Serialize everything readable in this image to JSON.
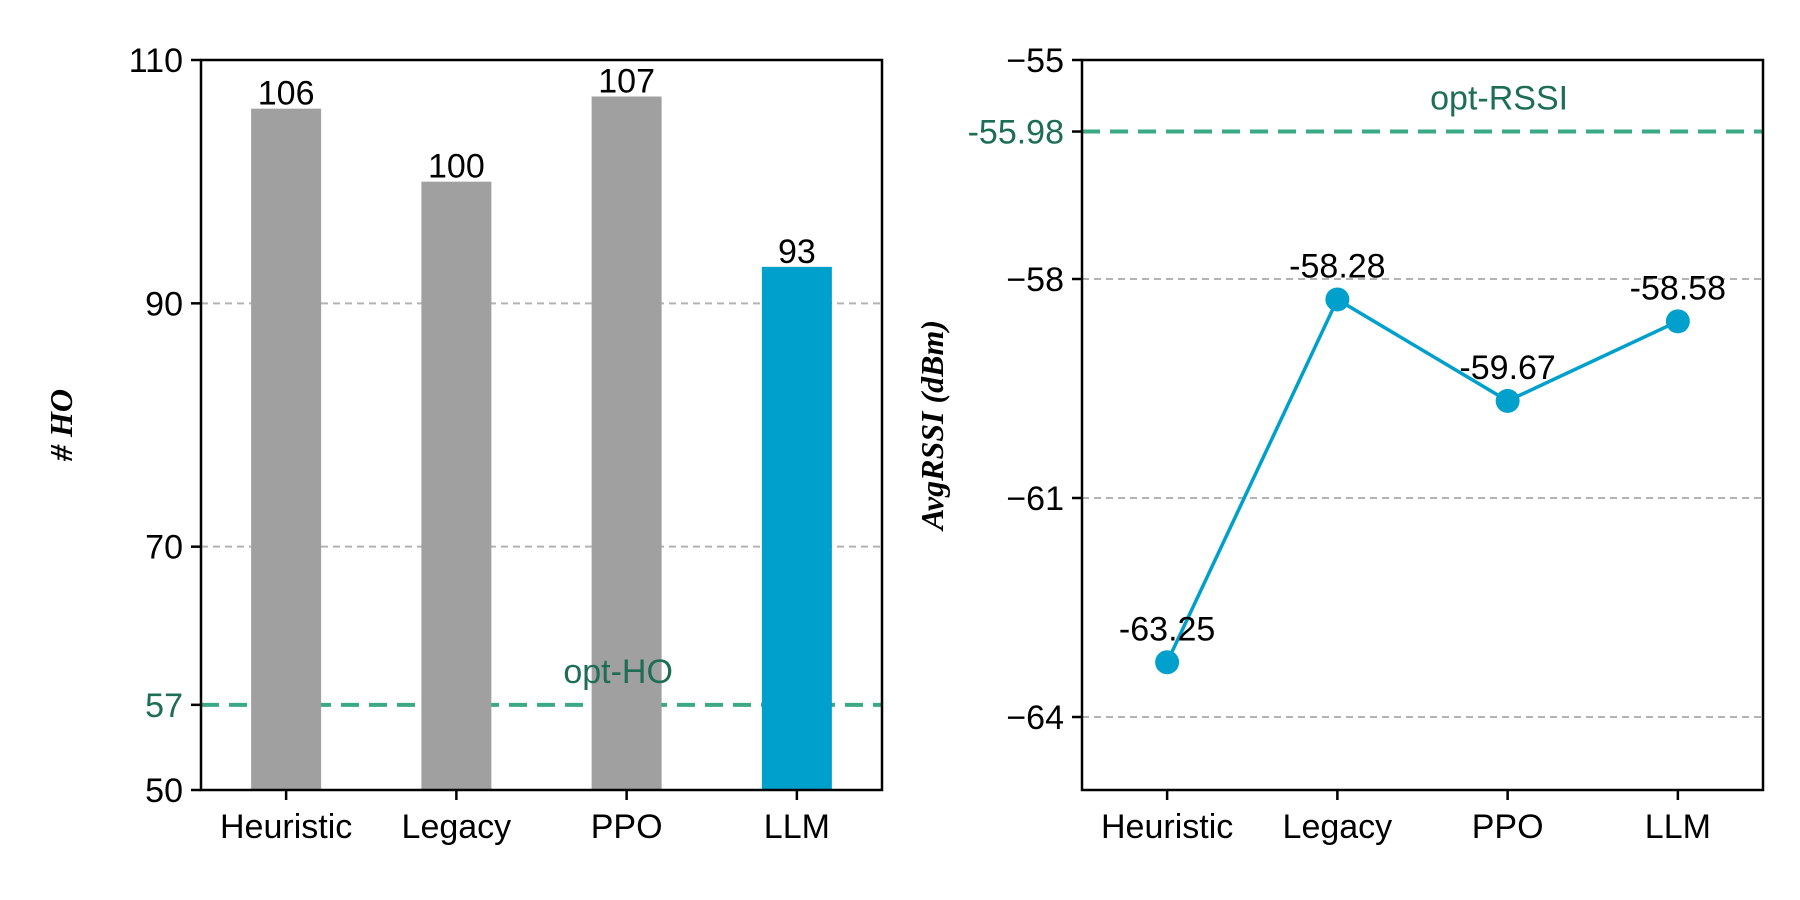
{
  "chart_data": [
    {
      "type": "bar",
      "categories": [
        "Heuristic",
        "Legacy",
        "PPO",
        "LLM"
      ],
      "values": [
        106,
        100,
        107,
        93
      ],
      "value_labels": [
        "106",
        "100",
        "107",
        "93"
      ],
      "bar_colors": [
        "#a0a0a0",
        "#a0a0a0",
        "#a0a0a0",
        "#00a0cc"
      ],
      "ylabel": "# HO",
      "ylim": [
        50,
        110
      ],
      "yticks": [
        50,
        57,
        70,
        90,
        110
      ],
      "ytick_labels": [
        "50",
        "57",
        "70",
        "90",
        "110"
      ],
      "highlight_ytick": "57",
      "grid_y": [
        70,
        90
      ],
      "reference_line": {
        "value": 57,
        "label": "opt-HO",
        "color": "#3aaa85",
        "text_color": "#1e6e55"
      }
    },
    {
      "type": "line",
      "categories": [
        "Heuristic",
        "Legacy",
        "PPO",
        "LLM"
      ],
      "values": [
        -63.25,
        -58.28,
        -59.67,
        -58.58
      ],
      "value_labels": [
        "-63.25",
        "-58.28",
        "-59.67",
        "-58.58"
      ],
      "series_color": "#00a0cc",
      "ylabel": "AvgRSSI (dBm)",
      "ylim": [
        -65,
        -55
      ],
      "yticks": [
        -64,
        -61,
        -58,
        -55.98,
        -55
      ],
      "ytick_labels": [
        "−64",
        "−61",
        "−58",
        "-55.98",
        "−55"
      ],
      "highlight_ytick": "-55.98",
      "grid_y": [
        -64,
        -61,
        -58
      ],
      "reference_line": {
        "value": -55.98,
        "label": "opt-RSSI",
        "color": "#3aaa85",
        "text_color": "#1e6e55"
      }
    }
  ]
}
